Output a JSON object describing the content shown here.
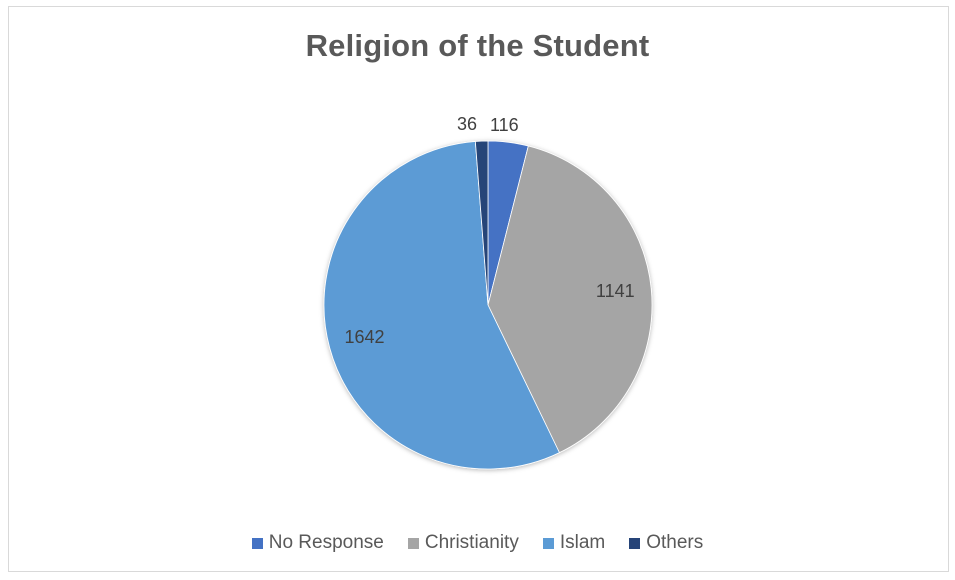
{
  "chart_data": {
    "type": "pie",
    "title": "Religion of the Student",
    "categories": [
      "No Response",
      "Christianity",
      "Islam",
      "Others"
    ],
    "values": [
      116,
      1141,
      1642,
      36
    ],
    "colors": [
      "#4472c4",
      "#a5a5a5",
      "#5b9bd5",
      "#264478"
    ],
    "data_labels": [
      "116",
      "1141",
      "1642",
      "36"
    ],
    "legend_position": "bottom",
    "start_angle_degrees_clockwise_from_top": 0
  }
}
